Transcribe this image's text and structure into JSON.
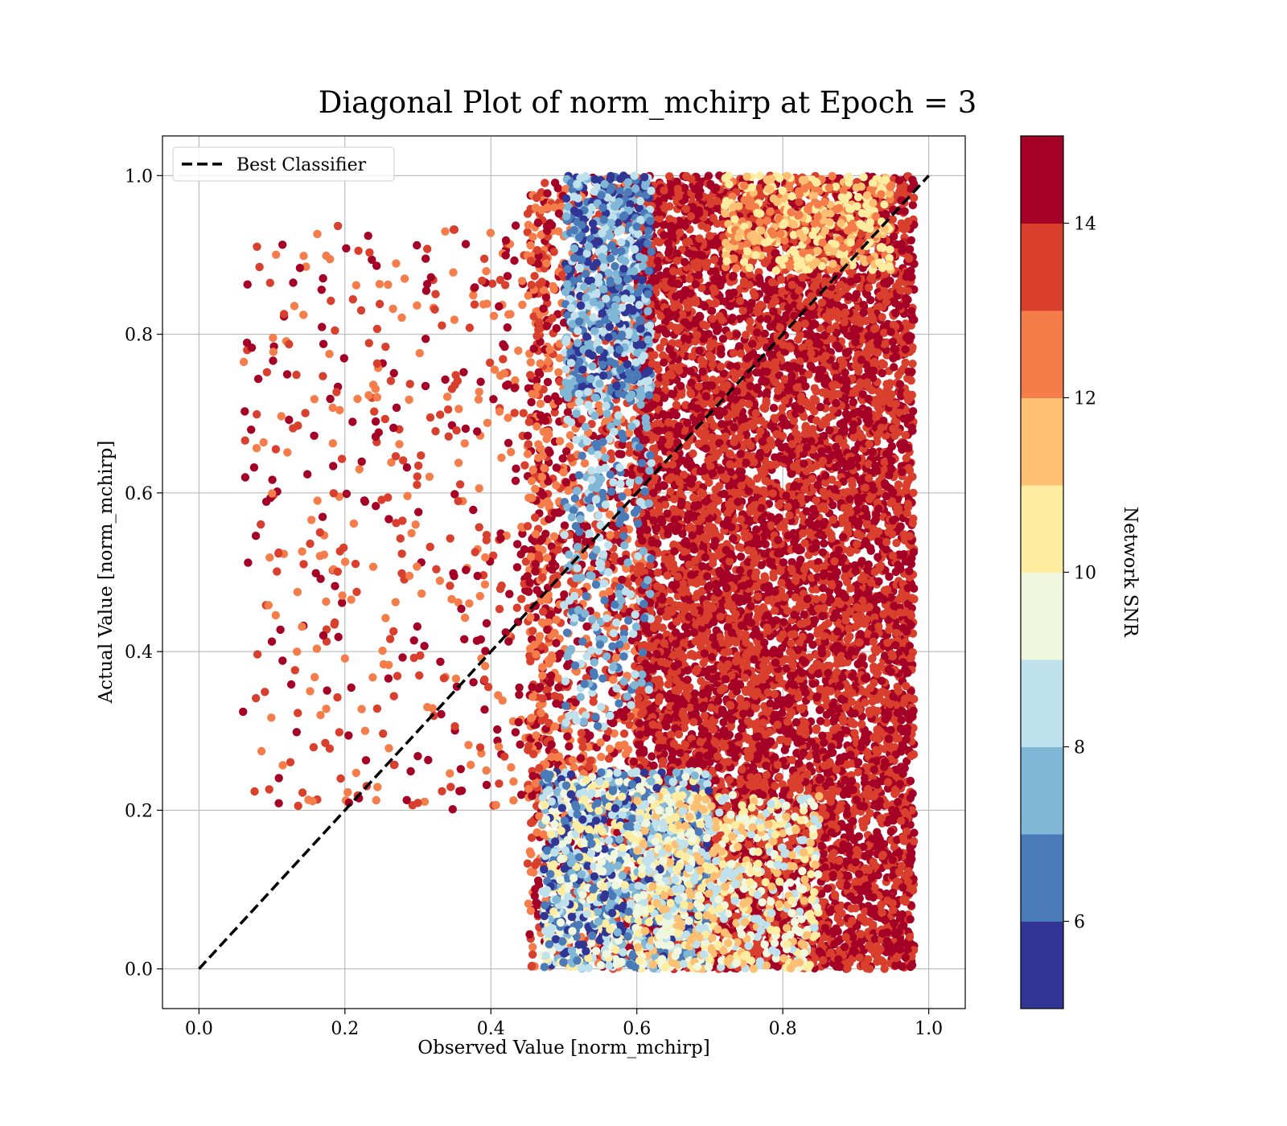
{
  "chart_data": {
    "type": "scatter",
    "title": "Diagonal Plot of norm_mchirp at Epoch = 3",
    "xlabel": "Observed Value [norm_mchirp]",
    "ylabel": "Actual Value [norm_mchirp]",
    "xlim": [
      -0.05,
      1.05
    ],
    "ylim": [
      -0.05,
      1.05
    ],
    "xticks": [
      0.0,
      0.2,
      0.4,
      0.6,
      0.8,
      1.0
    ],
    "yticks": [
      0.0,
      0.2,
      0.4,
      0.6,
      0.8,
      1.0
    ],
    "xtick_labels": [
      "0.0",
      "0.2",
      "0.4",
      "0.6",
      "0.8",
      "1.0"
    ],
    "ytick_labels": [
      "0.0",
      "0.2",
      "0.4",
      "0.6",
      "0.8",
      "1.0"
    ],
    "grid": true,
    "legend": {
      "position": "top-left",
      "entries": [
        {
          "label": "Best Classifier",
          "style": "dashed",
          "color": "#000000"
        }
      ]
    },
    "reference_line": {
      "x": [
        0.0,
        1.0
      ],
      "y": [
        0.0,
        1.0
      ]
    },
    "colorbar": {
      "label": "Network SNR",
      "range": [
        5,
        15
      ],
      "ticks": [
        6,
        8,
        10,
        12,
        14
      ],
      "tick_labels": [
        "6",
        "8",
        "10",
        "12",
        "14"
      ],
      "bins": [
        {
          "from": 5,
          "to": 6,
          "color": "#313695"
        },
        {
          "from": 6,
          "to": 7,
          "color": "#4a7ab7"
        },
        {
          "from": 7,
          "to": 8,
          "color": "#81b7d6"
        },
        {
          "from": 8,
          "to": 9,
          "color": "#bfe1ed"
        },
        {
          "from": 9,
          "to": 10,
          "color": "#eff8df"
        },
        {
          "from": 10,
          "to": 11,
          "color": "#feeda1"
        },
        {
          "from": 11,
          "to": 12,
          "color": "#fdbf71"
        },
        {
          "from": 12,
          "to": 13,
          "color": "#f47d4a"
        },
        {
          "from": 13,
          "to": 14,
          "color": "#d93f2d"
        },
        {
          "from": 14,
          "to": 15,
          "color": "#a50026"
        }
      ]
    },
    "point_groups": [
      {
        "x_range": [
          0.06,
          0.48
        ],
        "y_range": [
          0.2,
          0.94
        ],
        "snr_range": [
          12,
          15
        ],
        "count": 620,
        "note_x_density": "sparse-left"
      },
      {
        "x_range": [
          0.45,
          0.62
        ],
        "y_range": [
          0.0,
          1.0
        ],
        "snr_range": [
          12,
          15
        ],
        "count": 1600
      },
      {
        "x_range": [
          0.6,
          0.98
        ],
        "y_range": [
          0.0,
          1.0
        ],
        "snr_range": [
          13,
          15
        ],
        "count": 9000
      },
      {
        "x_range": [
          0.5,
          0.62
        ],
        "y_range": [
          0.72,
          1.0
        ],
        "snr_range": [
          5,
          9
        ],
        "count": 700
      },
      {
        "x_range": [
          0.5,
          0.62
        ],
        "y_range": [
          0.3,
          0.72
        ],
        "snr_range": [
          6,
          9
        ],
        "count": 250
      },
      {
        "x_range": [
          0.47,
          0.7
        ],
        "y_range": [
          0.0,
          0.25
        ],
        "snr_range": [
          5,
          11
        ],
        "count": 1300
      },
      {
        "x_range": [
          0.6,
          0.85
        ],
        "y_range": [
          0.0,
          0.22
        ],
        "snr_range": [
          8,
          12
        ],
        "count": 700
      },
      {
        "x_range": [
          0.72,
          0.95
        ],
        "y_range": [
          0.88,
          1.0
        ],
        "snr_range": [
          10,
          13
        ],
        "count": 400
      }
    ]
  }
}
